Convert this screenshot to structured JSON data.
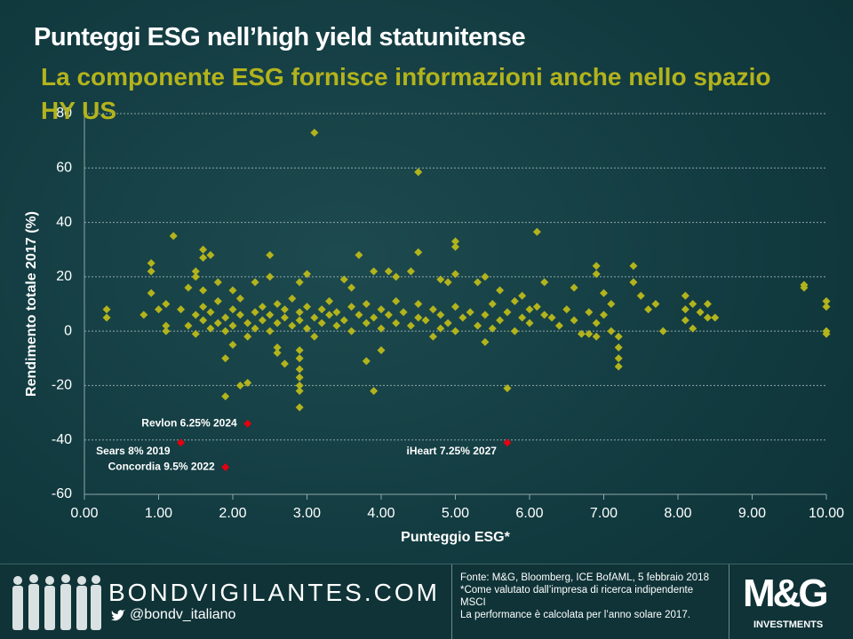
{
  "chart_data": {
    "type": "scatter",
    "title": "Punteggi ESG nell’high yield statunitense",
    "subtitle": "La componente ESG fornisce informazioni anche nello spazio HY US",
    "x_label": "Punteggio ESG*",
    "y_label": "Rendimento totale 2017 (%)",
    "xlim": [
      0,
      10
    ],
    "ylim": [
      -60,
      80
    ],
    "xticks": [
      {
        "value": 0,
        "label": "0.00"
      },
      {
        "value": 1,
        "label": "1.00"
      },
      {
        "value": 2,
        "label": "2.00"
      },
      {
        "value": 3,
        "label": "3.00"
      },
      {
        "value": 4,
        "label": "4.00"
      },
      {
        "value": 5,
        "label": "5.00"
      },
      {
        "value": 6,
        "label": "6.00"
      },
      {
        "value": 7,
        "label": "7.00"
      },
      {
        "value": 8,
        "label": "8.00"
      },
      {
        "value": 9,
        "label": "9.00"
      },
      {
        "value": 10,
        "label": "10.00"
      }
    ],
    "yticks": [
      -60,
      -40,
      -20,
      0,
      20,
      40,
      60,
      80
    ],
    "grid": true,
    "series": [
      {
        "color": "#b3b31c",
        "x": [
          3.1,
          4.5,
          1.2,
          6.1,
          5.0,
          5.0,
          4.5,
          1.6,
          1.6,
          1.7,
          2.5,
          3.7,
          0.9,
          0.9,
          0.3,
          0.3,
          0.8,
          0.9,
          1.1,
          1.1,
          1.1,
          1.5,
          1.5,
          1.9,
          1.9,
          2.1,
          2.2,
          2.0,
          2.9,
          2.9,
          2.9,
          2.9,
          2.9,
          2.9,
          2.9,
          2.7,
          2.6,
          2.6,
          3.8,
          4.0,
          3.9,
          5.7,
          4.7,
          5.4,
          7.2,
          7.2,
          7.2,
          7.2,
          6.9,
          6.8,
          7.4,
          7.4,
          7.5,
          7.6,
          7.7,
          7.8,
          8.1,
          8.1,
          8.2,
          8.2,
          8.1,
          8.3,
          8.4,
          8.4,
          8.5,
          9.7,
          9.7,
          10.0,
          10.0,
          10.0,
          10.0,
          6.9,
          6.9,
          6.6,
          6.2,
          7.0,
          7.1,
          6.5,
          6.3,
          6.0,
          5.9,
          5.8,
          5.6,
          5.4,
          5.3,
          5.0,
          4.9,
          4.8,
          4.4,
          4.1,
          4.2,
          3.9,
          3.6,
          3.5,
          3.0,
          2.9,
          2.5,
          2.3,
          2.0,
          1.8,
          1.6,
          1.4,
          1.3,
          1.0,
          1.4,
          1.5,
          1.5,
          1.6,
          1.6,
          1.7,
          1.7,
          1.8,
          1.8,
          1.9,
          1.9,
          2.0,
          2.0,
          2.1,
          2.1,
          2.2,
          2.2,
          2.3,
          2.3,
          2.4,
          2.4,
          2.5,
          2.5,
          2.6,
          2.6,
          2.7,
          2.7,
          2.8,
          2.8,
          2.9,
          2.9,
          3.0,
          3.0,
          3.1,
          3.1,
          3.2,
          3.2,
          3.3,
          3.3,
          3.4,
          3.4,
          3.5,
          3.6,
          3.6,
          3.7,
          3.8,
          3.8,
          3.9,
          4.0,
          4.0,
          4.1,
          4.2,
          4.2,
          4.3,
          4.4,
          4.5,
          4.5,
          4.6,
          4.7,
          4.8,
          4.8,
          4.9,
          5.0,
          5.0,
          5.1,
          5.2,
          5.3,
          5.4,
          5.5,
          5.5,
          5.6,
          5.7,
          5.8,
          5.9,
          6.0,
          6.1,
          6.2,
          6.4,
          6.6,
          6.7,
          6.8,
          6.9,
          7.0,
          7.1
        ],
        "values": [
          73,
          58.5,
          35,
          36.5,
          33,
          31,
          29,
          30,
          27,
          28,
          28,
          28,
          25,
          22,
          8,
          5,
          6,
          14,
          10,
          2,
          0,
          22,
          20,
          -10,
          -24,
          -20,
          -19,
          -5,
          -28,
          -22,
          -20,
          -17,
          -14,
          -10,
          -7,
          -12,
          -8,
          -6,
          -11,
          -7,
          -22,
          -21,
          -2,
          -4,
          -13,
          -10,
          -6,
          -2,
          -2,
          -1,
          24,
          18,
          13,
          8,
          10,
          0,
          13,
          8,
          10,
          1,
          4,
          7,
          10,
          5,
          5,
          16,
          17,
          11,
          9,
          0,
          -1,
          24,
          21,
          16,
          18,
          14,
          10,
          8,
          5,
          8,
          13,
          11,
          15,
          20,
          18,
          21,
          18,
          19,
          22,
          22,
          20,
          22,
          16,
          19,
          21,
          18,
          20,
          18,
          15,
          18,
          15,
          16,
          8,
          8,
          2,
          6,
          -1,
          4,
          9,
          1,
          7,
          3,
          11,
          5,
          0,
          8,
          2,
          6,
          12,
          3,
          -2,
          7,
          1,
          9,
          4,
          6,
          0,
          10,
          3,
          5,
          8,
          2,
          12,
          4,
          7,
          1,
          9,
          5,
          -2,
          8,
          3,
          6,
          11,
          2,
          7,
          4,
          9,
          0,
          6,
          3,
          10,
          5,
          8,
          1,
          6,
          3,
          11,
          7,
          2,
          5,
          10,
          4,
          8,
          1,
          6,
          3,
          9,
          0,
          5,
          7,
          2,
          6,
          10,
          1,
          4,
          7,
          0,
          5,
          3,
          9,
          6,
          2,
          4,
          -1,
          7,
          3,
          6,
          0
        ]
      }
    ],
    "highlights": {
      "color": "#e3000f",
      "labels": [
        "Revlon 6.25%  2024",
        "Sears 8%  2019",
        "Concordia 9.5%  2022",
        "iHeart 7.25%  2027"
      ],
      "x": [
        2.2,
        1.3,
        1.9,
        5.7
      ],
      "values": [
        -34,
        -41,
        -50,
        -41
      ]
    }
  },
  "footer": {
    "brand": "BONDVIGILANTES.COM",
    "handle": "@bondv_italiano",
    "source": [
      "Fonte: M&G,  Bloomberg, ICE BofAML,  5 febbraio 2018 *Come valutato dall’impresa di ricerca indipendente MSCI",
      "La performance è calcolata per l’anno solare 2017."
    ],
    "logo": "M&G",
    "logo_sub": "INVESTMENTS"
  }
}
